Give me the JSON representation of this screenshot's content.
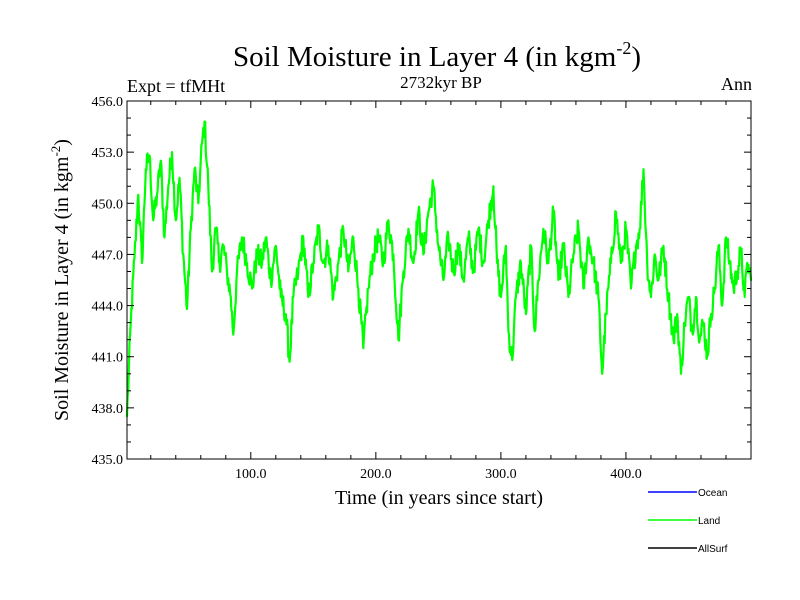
{
  "header": {
    "title_main": "Soil Moisture in Layer 4 (in kgm",
    "title_sup": "-2",
    "title_close": ")",
    "subtitle": "2732kyr BP",
    "left_label": "Expt = tfMHt",
    "right_label": "Ann"
  },
  "chart_data": {
    "type": "line",
    "title": "Soil Moisture in Layer 4 (in kgm-2)",
    "subtitle": "2732kyr BP",
    "xlabel": "Time (in years since start)",
    "ylabel_main": "Soil Moisture in Layer 4 (in kgm",
    "ylabel_sup": "-2",
    "ylabel_close": ")",
    "xlim": [
      1,
      500
    ],
    "ylim": [
      435.0,
      456.0
    ],
    "x_ticks": [
      100,
      200,
      300,
      400
    ],
    "x_tick_labels": [
      "100.0",
      "200.0",
      "300.0",
      "400.0"
    ],
    "y_ticks": [
      435,
      438,
      441,
      444,
      447,
      450,
      453,
      456
    ],
    "y_tick_labels": [
      "435.0",
      "438.0",
      "441.0",
      "444.0",
      "447.0",
      "450.0",
      "453.0",
      "456.0"
    ],
    "legend": [
      {
        "name": "Ocean",
        "color": "#0000ff"
      },
      {
        "name": "Land",
        "color": "#00ff00"
      },
      {
        "name": "AllSurf",
        "color": "#000000"
      }
    ],
    "series": [
      {
        "name": "Land",
        "color": "#00ff00",
        "anchors": [
          [
            1,
            437.5
          ],
          [
            4,
            443.0
          ],
          [
            7,
            446.8
          ],
          [
            10,
            450.5
          ],
          [
            13,
            446.5
          ],
          [
            16,
            452.0
          ],
          [
            19,
            452.8
          ],
          [
            22,
            449.0
          ],
          [
            25,
            450.5
          ],
          [
            28,
            452.5
          ],
          [
            31,
            448.0
          ],
          [
            34,
            451.0
          ],
          [
            37,
            453.0
          ],
          [
            40,
            449.0
          ],
          [
            43,
            451.5
          ],
          [
            46,
            447.0
          ],
          [
            49,
            443.8
          ],
          [
            52,
            448.5
          ],
          [
            55,
            452.0
          ],
          [
            58,
            450.0
          ],
          [
            61,
            453.5
          ],
          [
            63,
            454.8
          ],
          [
            66,
            451.0
          ],
          [
            69,
            446.0
          ],
          [
            72,
            448.5
          ],
          [
            75,
            446.5
          ],
          [
            78,
            447.5
          ],
          [
            81,
            446.0
          ],
          [
            84,
            444.5
          ],
          [
            86,
            442.3
          ],
          [
            89,
            446.0
          ],
          [
            93,
            448.0
          ],
          [
            97,
            446.5
          ],
          [
            101,
            445.0
          ],
          [
            105,
            447.0
          ],
          [
            109,
            446.5
          ],
          [
            112,
            448.0
          ],
          [
            116,
            445.5
          ],
          [
            120,
            447.5
          ],
          [
            124,
            444.5
          ],
          [
            128,
            443.5
          ],
          [
            131,
            440.7
          ],
          [
            134,
            444.5
          ],
          [
            138,
            446.0
          ],
          [
            142,
            448.0
          ],
          [
            146,
            444.5
          ],
          [
            150,
            446.5
          ],
          [
            154,
            448.5
          ],
          [
            158,
            446.5
          ],
          [
            162,
            447.5
          ],
          [
            166,
            444.5
          ],
          [
            170,
            446.5
          ],
          [
            174,
            448.5
          ],
          [
            178,
            446.0
          ],
          [
            182,
            448.0
          ],
          [
            186,
            445.0
          ],
          [
            190,
            441.5
          ],
          [
            194,
            445.0
          ],
          [
            198,
            447.0
          ],
          [
            202,
            448.0
          ],
          [
            206,
            446.5
          ],
          [
            210,
            449.0
          ],
          [
            214,
            447.0
          ],
          [
            218,
            442.0
          ],
          [
            222,
            446.0
          ],
          [
            226,
            448.5
          ],
          [
            230,
            446.5
          ],
          [
            234,
            449.5
          ],
          [
            238,
            447.0
          ],
          [
            242,
            449.5
          ],
          [
            246,
            451.0
          ],
          [
            250,
            447.5
          ],
          [
            254,
            445.5
          ],
          [
            258,
            448.0
          ],
          [
            262,
            446.0
          ],
          [
            266,
            447.5
          ],
          [
            270,
            445.5
          ],
          [
            274,
            448.0
          ],
          [
            278,
            446.0
          ],
          [
            282,
            448.5
          ],
          [
            286,
            446.5
          ],
          [
            290,
            449.0
          ],
          [
            294,
            451.0
          ],
          [
            297,
            446.5
          ],
          [
            300,
            444.5
          ],
          [
            304,
            447.5
          ],
          [
            306,
            442.5
          ],
          [
            309,
            440.8
          ],
          [
            312,
            444.5
          ],
          [
            316,
            446.5
          ],
          [
            320,
            443.5
          ],
          [
            324,
            447.5
          ],
          [
            327,
            442.5
          ],
          [
            330,
            445.5
          ],
          [
            334,
            448.5
          ],
          [
            338,
            446.5
          ],
          [
            342,
            449.5
          ],
          [
            346,
            445.5
          ],
          [
            350,
            447.5
          ],
          [
            354,
            444.5
          ],
          [
            358,
            447.0
          ],
          [
            362,
            448.5
          ],
          [
            366,
            445.0
          ],
          [
            370,
            448.0
          ],
          [
            374,
            446.5
          ],
          [
            378,
            444.5
          ],
          [
            381,
            440.0
          ],
          [
            384,
            443.5
          ],
          [
            388,
            446.5
          ],
          [
            392,
            449.5
          ],
          [
            396,
            446.5
          ],
          [
            400,
            448.5
          ],
          [
            404,
            445.0
          ],
          [
            408,
            447.5
          ],
          [
            411,
            448.5
          ],
          [
            414,
            452.0
          ],
          [
            417,
            446.5
          ],
          [
            420,
            444.5
          ],
          [
            423,
            447.0
          ],
          [
            426,
            445.5
          ],
          [
            430,
            447.5
          ],
          [
            434,
            444.5
          ],
          [
            438,
            442.0
          ],
          [
            441,
            443.5
          ],
          [
            444,
            440.0
          ],
          [
            447,
            443.0
          ],
          [
            450,
            444.5
          ],
          [
            453,
            442.5
          ],
          [
            456,
            444.5
          ],
          [
            459,
            442.0
          ],
          [
            462,
            443.0
          ],
          [
            465,
            441.0
          ],
          [
            468,
            443.5
          ],
          [
            471,
            445.0
          ],
          [
            474,
            447.5
          ],
          [
            477,
            444.0
          ],
          [
            480,
            448.0
          ],
          [
            483,
            446.5
          ],
          [
            486,
            445.0
          ],
          [
            489,
            446.0
          ],
          [
            492,
            447.2
          ],
          [
            495,
            444.5
          ],
          [
            497,
            446.5
          ],
          [
            500,
            445.5
          ]
        ]
      }
    ]
  }
}
